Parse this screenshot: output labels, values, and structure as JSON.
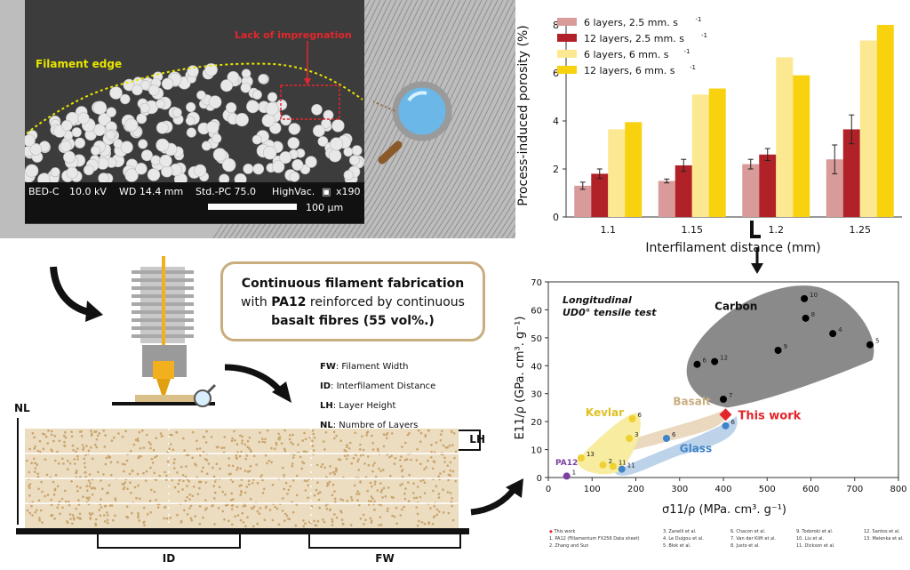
{
  "sem": {
    "filament_edge": "Filament edge",
    "lack_impregnation": "Lack of impregnation",
    "bar": {
      "detector": "BED-C",
      "kv": "10.0 kV",
      "wd": "WD 14.4 mm",
      "std": "Std.-PC 75.0",
      "vac": "HighVac.",
      "mag": "x190",
      "scale": "100 µm"
    }
  },
  "info_box": {
    "line1": "Continuous filament fabrication",
    "line2_pre": "with ",
    "line2_bold": "PA12",
    "line2_post": " reinforced by continuous",
    "line3": "basalt fibres (55 vol%.)"
  },
  "schematic": {
    "nl": "NL",
    "lh": "LH",
    "id": "ID",
    "fw": "FW",
    "defs": [
      {
        "abbr": "FW",
        "text": ": Filament Width"
      },
      {
        "abbr": "ID",
        "text": ": Interfilament Distance"
      },
      {
        "abbr": "LH",
        "text": ": Layer Height"
      },
      {
        "abbr": "NL",
        "text": ": Numbre of Layers"
      }
    ]
  },
  "chart_data": [
    {
      "type": "bar",
      "categories": [
        "1.1",
        "1.15",
        "1.2",
        "1.25"
      ],
      "xlabel": "Interfilament distance (mm)",
      "ylabel": "Process-induced porosity (%)",
      "ylim": [
        0,
        8
      ],
      "yticks": [
        "0",
        "2",
        "4",
        "6",
        "8"
      ],
      "series": [
        {
          "name": "6 layers, 2.5 mm. s",
          "color": "#d99a9a",
          "values": [
            1.3,
            1.5,
            2.2,
            2.4
          ],
          "err": [
            0.15,
            0.08,
            0.2,
            0.6
          ]
        },
        {
          "name": "12 layers, 2.5 mm. s",
          "color": "#b02228",
          "values": [
            1.8,
            2.15,
            2.6,
            3.65
          ],
          "err": [
            0.2,
            0.25,
            0.25,
            0.6
          ]
        },
        {
          "name": "6 layers, 6 mm. s",
          "color": "#fbe890",
          "values": [
            3.65,
            5.1,
            6.65,
            7.35
          ],
          "err": [
            0,
            0,
            0,
            0
          ]
        },
        {
          "name": "12 layers, 6 mm. s",
          "color": "#f8d10f",
          "values": [
            3.95,
            5.35,
            5.9,
            8.0
          ],
          "err": [
            0,
            0,
            0,
            0
          ]
        }
      ],
      "legend_superscript": "-1"
    },
    {
      "type": "scatter",
      "title_line1": "Longitudinal",
      "title_line2": "UD0° tensile test",
      "xlabel": "σ11/ρ (MPa. cm³. g⁻¹)",
      "ylabel": "E11/ρ (GPa. cm³. g⁻¹)",
      "xlim": [
        0,
        800
      ],
      "ylim": [
        0,
        70
      ],
      "xticks": [
        "0",
        "100",
        "200",
        "300",
        "400",
        "500",
        "600",
        "700",
        "800"
      ],
      "yticks": [
        "0",
        "10",
        "20",
        "30",
        "40",
        "50",
        "60",
        "70"
      ],
      "groups": [
        {
          "name": "Carbon",
          "color": "#000000",
          "points": [
            {
              "x": 340,
              "y": 40.5,
              "label": "6"
            },
            {
              "x": 380,
              "y": 41.5,
              "label": "12"
            },
            {
              "x": 400,
              "y": 28,
              "label": "7"
            },
            {
              "x": 525,
              "y": 45.5,
              "label": "9"
            },
            {
              "x": 585,
              "y": 64,
              "label": "10"
            },
            {
              "x": 588,
              "y": 57,
              "label": "8"
            },
            {
              "x": 650,
              "y": 51.5,
              "label": "4"
            },
            {
              "x": 735,
              "y": 47.5,
              "label": "5"
            }
          ]
        },
        {
          "name": "Glass",
          "color": "#3f83c8",
          "points": [
            {
              "x": 270,
              "y": 14,
              "label": "6"
            },
            {
              "x": 168,
              "y": 3,
              "label": "11"
            },
            {
              "x": 405,
              "y": 18.5,
              "label": "6"
            }
          ]
        },
        {
          "name": "Kevlar",
          "color": "#f0d030",
          "points": [
            {
              "x": 75,
              "y": 7,
              "label": "13"
            },
            {
              "x": 125,
              "y": 4.5,
              "label": "2"
            },
            {
              "x": 148,
              "y": 4,
              "label": "11"
            },
            {
              "x": 185,
              "y": 14,
              "label": "3"
            },
            {
              "x": 192,
              "y": 21,
              "label": "6"
            }
          ]
        },
        {
          "name": "PA12",
          "color": "#7a3fa0",
          "points": [
            {
              "x": 42,
              "y": 0.5,
              "label": "1"
            }
          ]
        },
        {
          "name": "Basalt",
          "color": "#c8ad7f",
          "points": []
        }
      ],
      "this_work": {
        "name": "This work",
        "x": 405,
        "y": 22.5,
        "color": "#e3262b"
      }
    }
  ],
  "references": [
    "This work",
    "1. PA12 (Fillamentum FX256 Data sheet)",
    "2. Zhang and Sun",
    "3. Zanelli et al.",
    "4. Le Duigou et al.",
    "5. Blok et al.",
    "6. Chacon et al.",
    "7. Van der Klift et al.",
    "8. Justo et al.",
    "9. Todoroki et al.",
    "10. Liu et al.",
    "11. Dickson et al.",
    "12. Santos et al.",
    "13. Melenka et al."
  ]
}
